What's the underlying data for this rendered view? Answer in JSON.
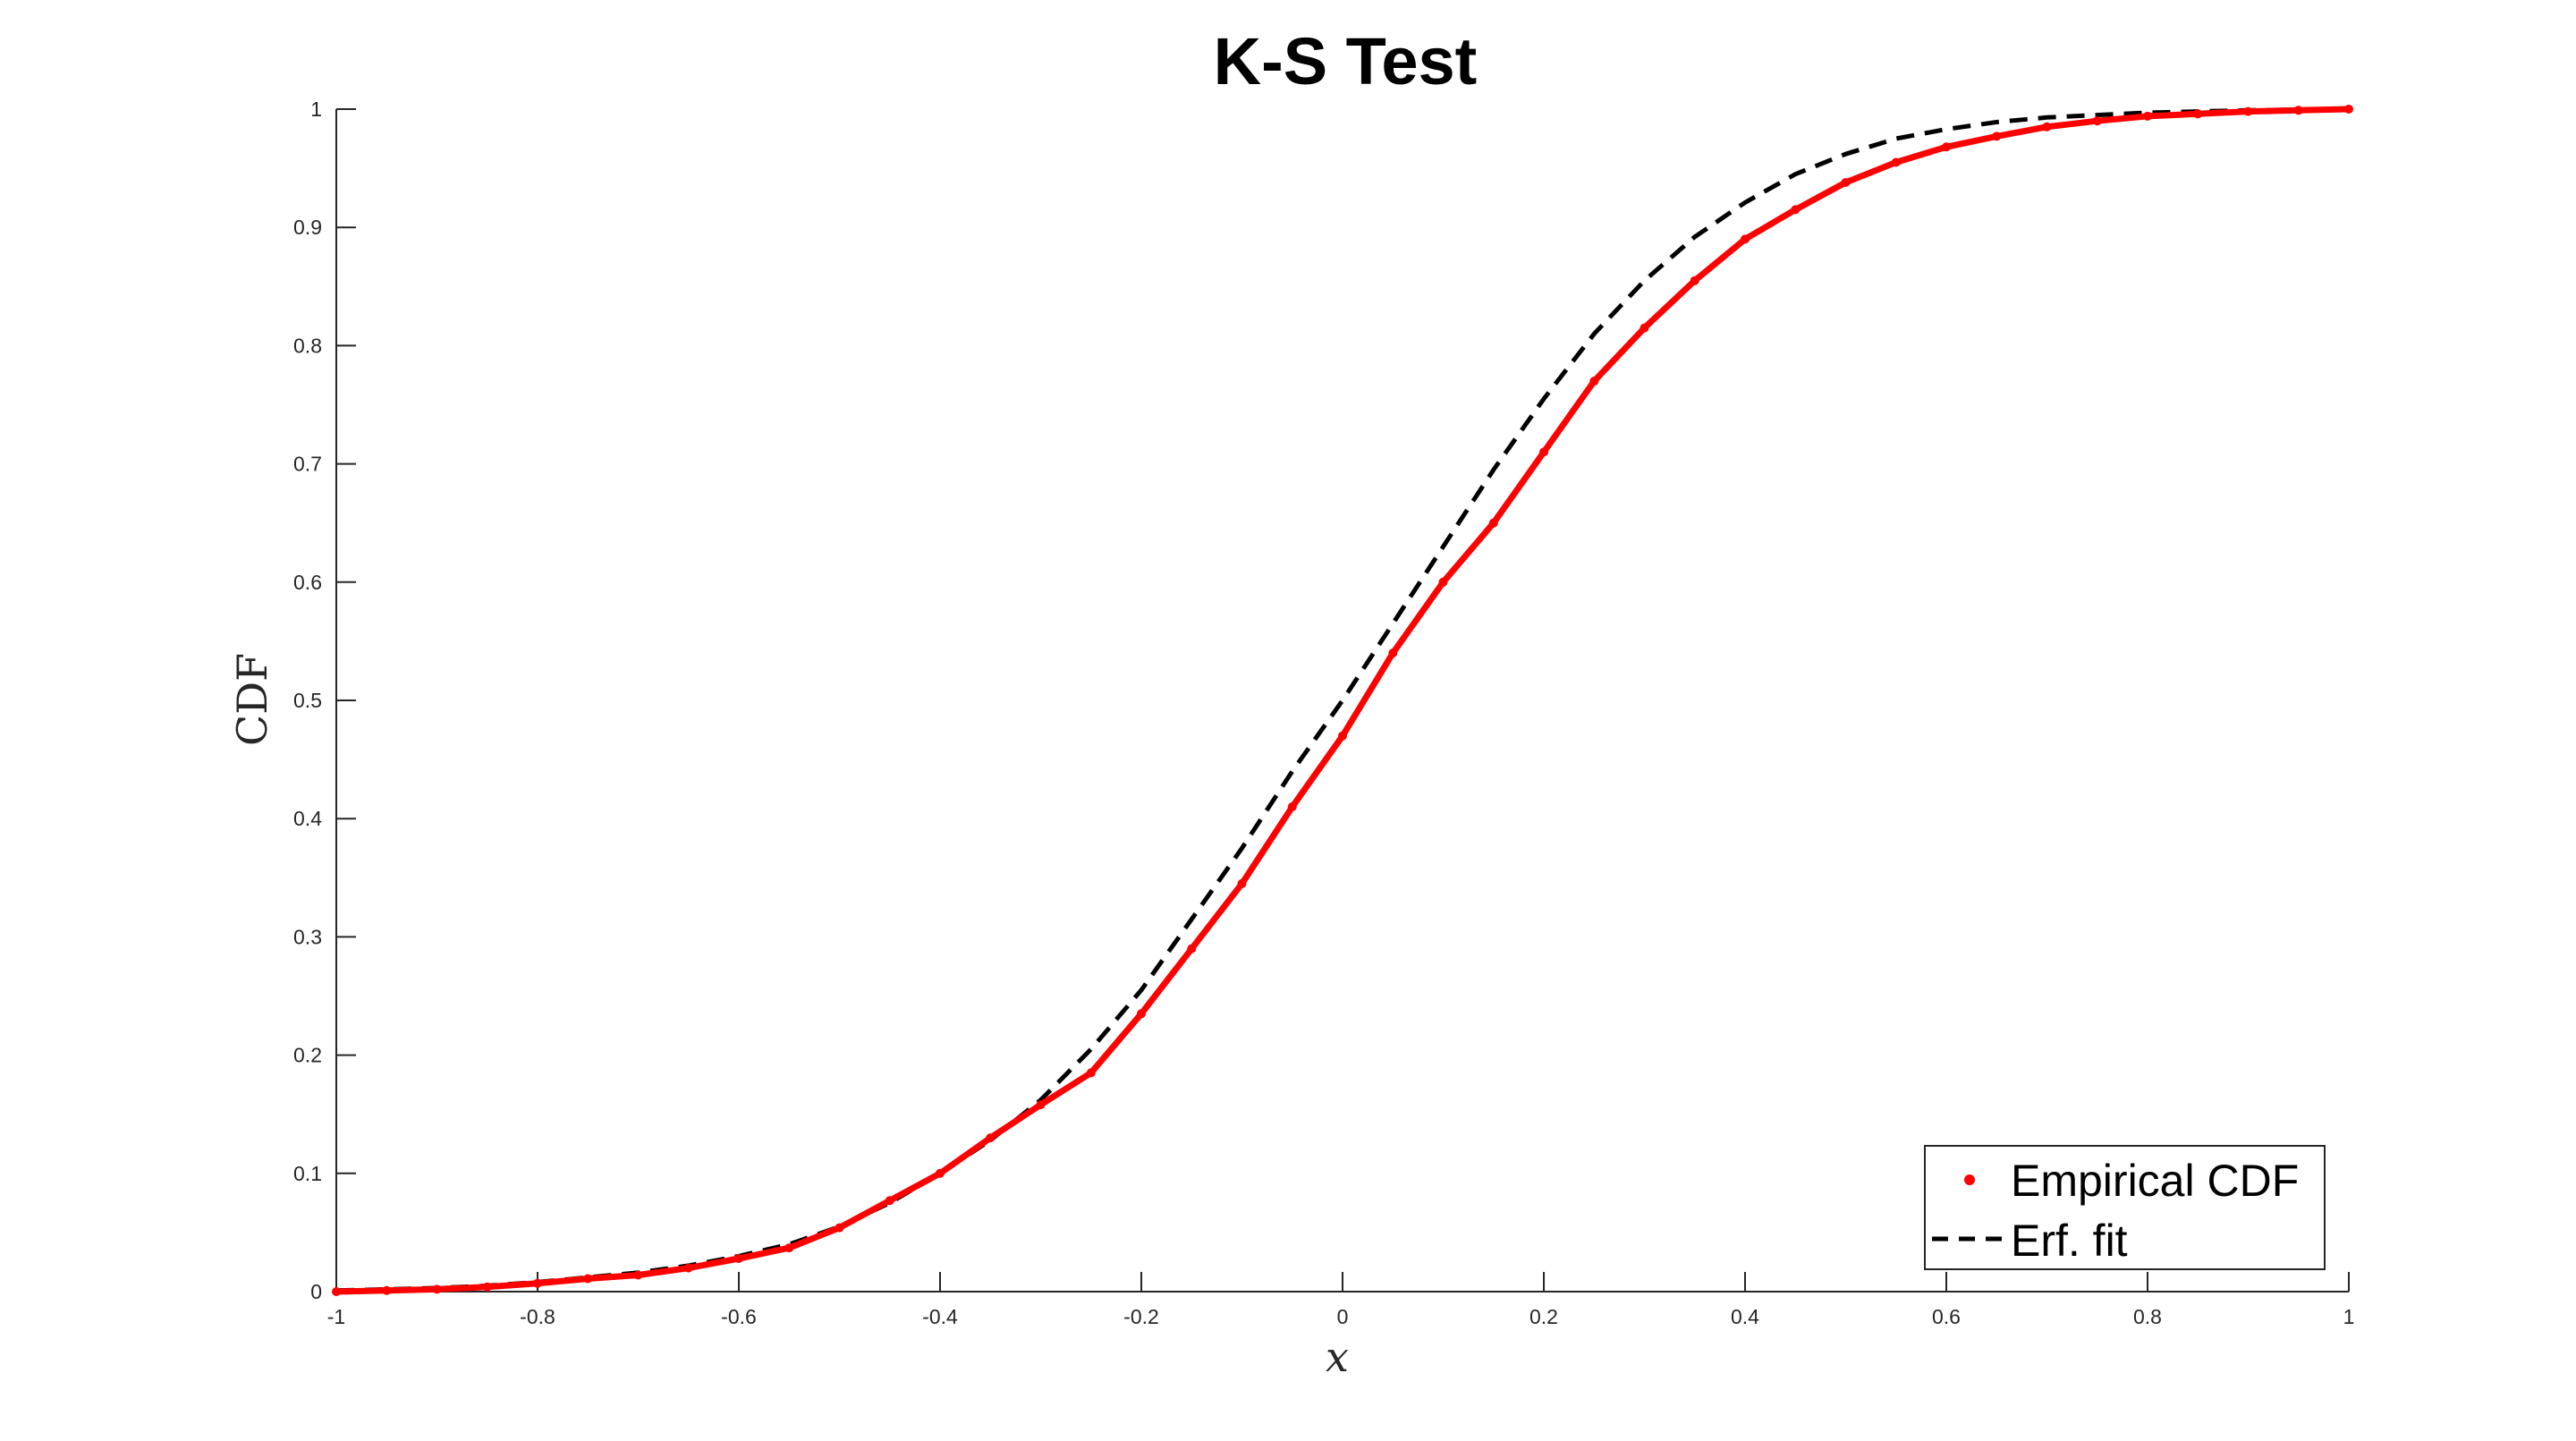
{
  "chart_data": {
    "type": "line",
    "title": "K-S Test",
    "xlabel": "x",
    "ylabel": "CDF",
    "xlim": [
      -1,
      1
    ],
    "ylim": [
      0,
      1
    ],
    "xticks": [
      -1,
      -0.8,
      -0.6,
      -0.4,
      -0.2,
      0,
      0.2,
      0.4,
      0.6,
      0.8,
      1
    ],
    "xtick_labels": [
      "-1",
      "-0.8",
      "-0.6",
      "-0.4",
      "-0.2",
      "0",
      "0.2",
      "0.4",
      "0.6",
      "0.8",
      "1"
    ],
    "yticks": [
      0,
      0.1,
      0.2,
      0.3,
      0.4,
      0.5,
      0.6,
      0.7,
      0.8,
      0.9,
      1
    ],
    "ytick_labels": [
      "0",
      "0.1",
      "0.2",
      "0.3",
      "0.4",
      "0.5",
      "0.6",
      "0.7",
      "0.8",
      "0.9",
      "1"
    ],
    "grid": false,
    "legend_position": "bottom-right",
    "series": [
      {
        "name": "Empirical CDF",
        "style": "dots",
        "color": "#ff0000",
        "x": [
          -1,
          -0.95,
          -0.9,
          -0.85,
          -0.8,
          -0.75,
          -0.7,
          -0.65,
          -0.6,
          -0.55,
          -0.5,
          -0.45,
          -0.4,
          -0.35,
          -0.3,
          -0.25,
          -0.2,
          -0.15,
          -0.1,
          -0.05,
          0,
          0.05,
          0.1,
          0.15,
          0.2,
          0.25,
          0.3,
          0.35,
          0.4,
          0.45,
          0.5,
          0.55,
          0.6,
          0.65,
          0.7,
          0.75,
          0.8,
          0.85,
          0.9,
          0.95,
          1
        ],
        "y": [
          0,
          0.001,
          0.002,
          0.004,
          0.007,
          0.011,
          0.014,
          0.02,
          0.028,
          0.037,
          0.054,
          0.077,
          0.1,
          0.13,
          0.158,
          0.185,
          0.235,
          0.29,
          0.345,
          0.41,
          0.47,
          0.54,
          0.6,
          0.65,
          0.71,
          0.77,
          0.815,
          0.855,
          0.89,
          0.915,
          0.938,
          0.955,
          0.968,
          0.977,
          0.985,
          0.99,
          0.994,
          0.996,
          0.998,
          0.999,
          1
        ]
      },
      {
        "name": "Erf. fit",
        "style": "dashed",
        "color": "#000000",
        "x": [
          -1,
          -0.95,
          -0.9,
          -0.85,
          -0.8,
          -0.75,
          -0.7,
          -0.65,
          -0.6,
          -0.55,
          -0.5,
          -0.45,
          -0.4,
          -0.35,
          -0.3,
          -0.25,
          -0.2,
          -0.15,
          -0.1,
          -0.05,
          0,
          0.05,
          0.1,
          0.15,
          0.2,
          0.25,
          0.3,
          0.35,
          0.4,
          0.45,
          0.5,
          0.55,
          0.6,
          0.65,
          0.7,
          0.75,
          0.8,
          0.85,
          0.9,
          0.95,
          1
        ],
        "y": [
          0.001,
          0.002,
          0.003,
          0.005,
          0.008,
          0.012,
          0.016,
          0.022,
          0.03,
          0.04,
          0.055,
          0.075,
          0.1,
          0.128,
          0.162,
          0.205,
          0.255,
          0.315,
          0.375,
          0.44,
          0.5,
          0.565,
          0.63,
          0.695,
          0.755,
          0.81,
          0.855,
          0.892,
          0.921,
          0.945,
          0.962,
          0.975,
          0.983,
          0.989,
          0.993,
          0.995,
          0.997,
          0.998,
          0.999,
          0.9995,
          1
        ]
      }
    ]
  },
  "colors": {
    "axis": "#262626",
    "empirical": "#ff0000",
    "fit": "#000000",
    "background": "#ffffff"
  }
}
